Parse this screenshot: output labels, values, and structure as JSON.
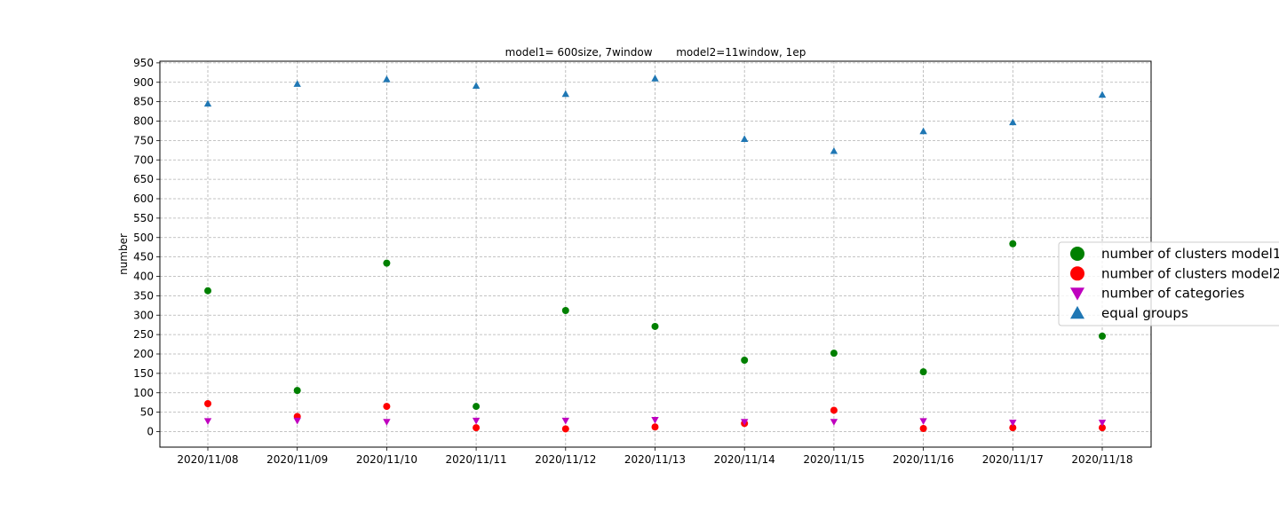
{
  "chart_data": {
    "type": "scatter",
    "title": "model1= 600size, 7window       model2=11window, 1ep",
    "xlabel": "",
    "ylabel": "number",
    "categories": [
      "2020/11/08",
      "2020/11/09",
      "2020/11/10",
      "2020/11/11",
      "2020/11/12",
      "2020/11/13",
      "2020/11/14",
      "2020/11/15",
      "2020/11/16",
      "2020/11/17",
      "2020/11/18"
    ],
    "ylim": [
      -40,
      955
    ],
    "yticks": [
      0,
      50,
      100,
      150,
      200,
      250,
      300,
      350,
      400,
      450,
      500,
      550,
      600,
      650,
      700,
      750,
      800,
      850,
      900,
      950
    ],
    "grid": true,
    "legend_position": "right",
    "series": [
      {
        "name": "number of clusters model1",
        "color": "#008000",
        "marker": "circle",
        "values": [
          363,
          106,
          434,
          65,
          312,
          271,
          184,
          202,
          154,
          484,
          246
        ]
      },
      {
        "name": "number of clusters model2",
        "color": "#ff0000",
        "marker": "circle",
        "values": [
          72,
          39,
          65,
          10,
          7,
          12,
          21,
          55,
          8,
          10,
          10
        ]
      },
      {
        "name": "number of categories",
        "color": "#bf00bf",
        "marker": "triangle-down",
        "values": [
          27,
          28,
          25,
          28,
          28,
          30,
          25,
          25,
          27,
          23,
          23
        ]
      },
      {
        "name": "equal groups",
        "color": "#1f77b4",
        "marker": "triangle-up",
        "values": [
          845,
          896,
          908,
          891,
          870,
          910,
          754,
          723,
          774,
          797,
          868
        ]
      }
    ]
  }
}
